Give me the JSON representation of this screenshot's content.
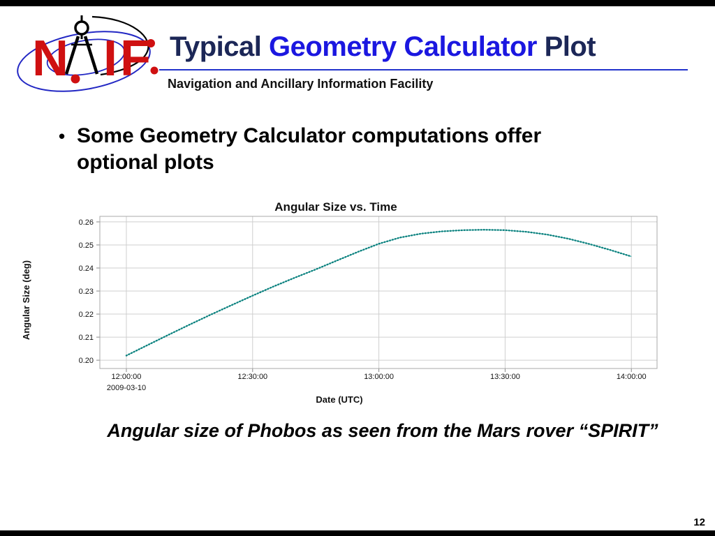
{
  "page": {
    "background": "#ffffff",
    "page_number": "12"
  },
  "header": {
    "logo": {
      "text": "NAIF",
      "letters": [
        "N",
        "A",
        "I",
        "F"
      ],
      "red": "#cf1011",
      "blue": "#2328c4",
      "compass_icon_color": "#000000"
    },
    "title": {
      "part1": "Typical ",
      "accent": "Geometry Calculator",
      "part2": " Plot",
      "dark_color": "#1c2757",
      "accent_color": "#1b17e0"
    },
    "rule_color": "#2233cc",
    "subtitle": "Navigation and Ancillary Information Facility"
  },
  "bullet": {
    "marker": "•",
    "lines": [
      "Some Geometry Calculator computations offer",
      "optional plots"
    ]
  },
  "caption": "Angular size of Phobos as seen from the Mars rover “SPIRIT”",
  "chart_data": {
    "type": "line",
    "title": "Angular Size vs. Time",
    "xlabel": "Date (UTC)",
    "ylabel": "Angular Size (deg)",
    "date_label": "2009-03-10",
    "grid": true,
    "legend": "none",
    "line_color": "#0d7f7d",
    "line_color_light": "#36aaa5",
    "line_style": "dotted",
    "grid_color": "#cfcfcf",
    "border_color": "#a8a8a8",
    "yticks": [
      "0.26",
      "0.25",
      "0.24",
      "0.23",
      "0.22",
      "0.21",
      "0.20"
    ],
    "ytick_values": [
      0.26,
      0.25,
      0.24,
      0.23,
      0.22,
      0.21,
      0.2
    ],
    "xticks": [
      "12:00:00",
      "12:30:00",
      "13:00:00",
      "13:30:00",
      "14:00:00"
    ],
    "xtick_minutes": [
      0,
      30,
      60,
      90,
      120
    ],
    "x_start_time": "12:00:00",
    "ylim": [
      0.1964,
      0.2624
    ],
    "xlim_minutes": [
      -6.3,
      126.1
    ],
    "x_minutes": [
      0,
      5,
      10,
      15,
      20,
      25,
      30,
      35,
      40,
      45,
      50,
      55,
      60,
      65,
      70,
      75,
      80,
      85,
      90,
      95,
      100,
      105,
      110,
      115,
      120
    ],
    "values": [
      0.202,
      0.2065,
      0.211,
      0.2154,
      0.2197,
      0.2239,
      0.228,
      0.232,
      0.2358,
      0.2394,
      0.2432,
      0.247,
      0.2505,
      0.2532,
      0.2549,
      0.2559,
      0.2564,
      0.2566,
      0.2564,
      0.2557,
      0.2545,
      0.2527,
      0.2504,
      0.2478,
      0.245
    ]
  }
}
